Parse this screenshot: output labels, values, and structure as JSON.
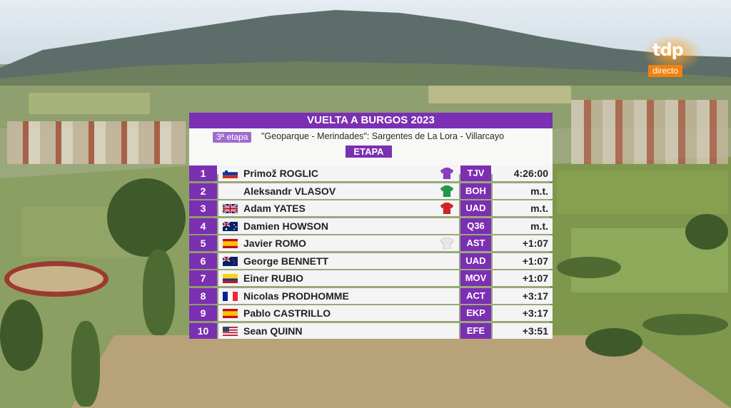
{
  "broadcast": {
    "logo_text": "tdp",
    "logo_sub": "directo",
    "logo_color": "#f0820f"
  },
  "graphic": {
    "title": "VUELTA A BURGOS 2023",
    "stage": "3ª etapa",
    "route": "\"Geoparque - Merindades\": Sargentes de La Lora - Villarcayo",
    "classification": "ETAPA",
    "accent_color": "#7b2fb2"
  },
  "results": [
    {
      "pos": "1",
      "flag": "SVN",
      "name": "Primož ROGLIC",
      "jersey": "purple-jersey",
      "team": "TJV",
      "time": "4:26:00"
    },
    {
      "pos": "2",
      "flag": "",
      "name": "Aleksandr VLASOV",
      "jersey": "green-jersey",
      "team": "BOH",
      "time": "m.t."
    },
    {
      "pos": "3",
      "flag": "GBR",
      "name": "Adam YATES",
      "jersey": "red-jersey",
      "team": "UAD",
      "time": "m.t."
    },
    {
      "pos": "4",
      "flag": "AUS",
      "name": "Damien HOWSON",
      "jersey": "",
      "team": "Q36",
      "time": "m.t."
    },
    {
      "pos": "5",
      "flag": "ESP",
      "name": "Javier ROMO",
      "jersey": "white-jersey",
      "team": "AST",
      "time": "+1:07"
    },
    {
      "pos": "6",
      "flag": "NZL",
      "name": "George BENNETT",
      "jersey": "",
      "team": "UAD",
      "time": "+1:07"
    },
    {
      "pos": "7",
      "flag": "COL",
      "name": "Einer RUBIO",
      "jersey": "",
      "team": "MOV",
      "time": "+1:07"
    },
    {
      "pos": "8",
      "flag": "FRA",
      "name": "Nicolas PRODHOMME",
      "jersey": "",
      "team": "ACT",
      "time": "+3:17"
    },
    {
      "pos": "9",
      "flag": "ESP",
      "name": "Pablo CASTRILLO",
      "jersey": "",
      "team": "EKP",
      "time": "+3:17"
    },
    {
      "pos": "10",
      "flag": "USA",
      "name": "Sean QUINN",
      "jersey": "",
      "team": "EFE",
      "time": "+3:51"
    }
  ]
}
